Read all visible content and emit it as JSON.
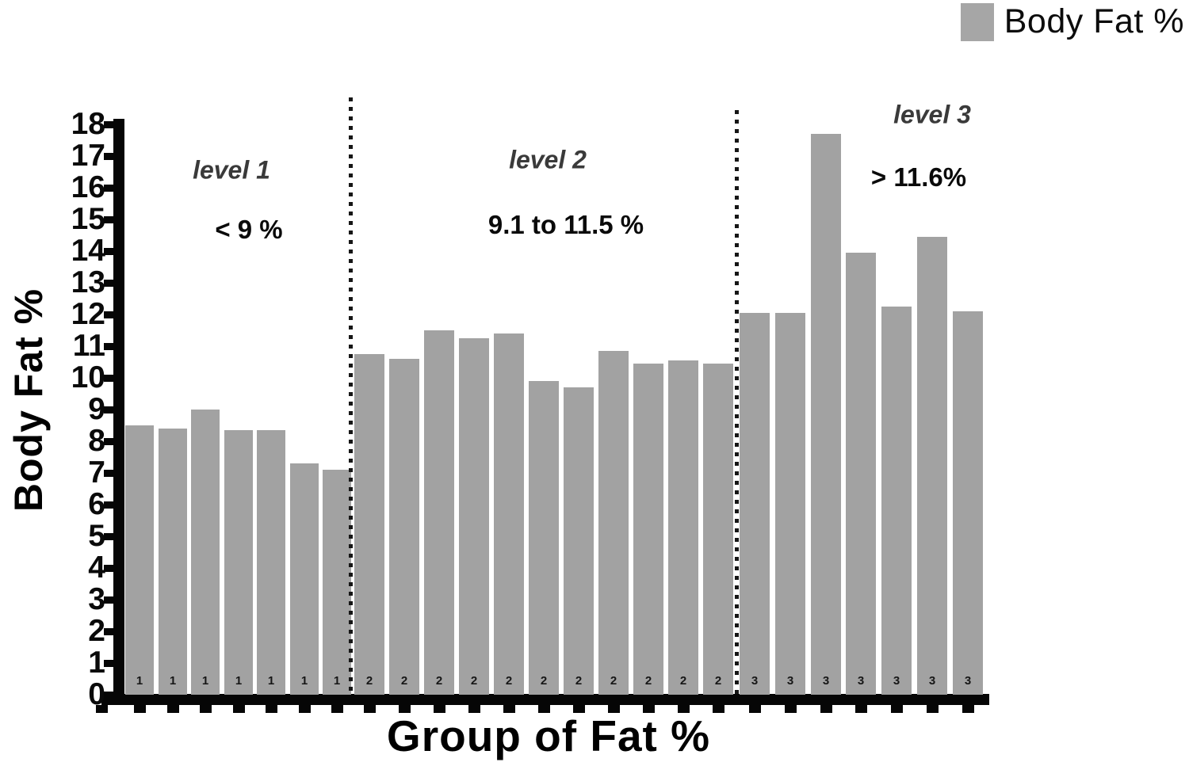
{
  "legend": {
    "label": "Body Fat %",
    "swatch_color": "#a6a6a6"
  },
  "annotations": {
    "level1": "level 1",
    "range1": "< 9 %",
    "level2": "level 2",
    "range2": "9.1 to 11.5 %",
    "level3": "level 3",
    "range3": "> 11.6%"
  },
  "chart_data": {
    "type": "bar",
    "title": "",
    "xlabel": "Group of Fat %",
    "ylabel": "Body Fat %",
    "ylim": [
      0,
      18
    ],
    "y_tick_step": 1,
    "y_ticks": [
      0,
      1,
      2,
      3,
      4,
      5,
      6,
      7,
      8,
      9,
      10,
      11,
      12,
      13,
      14,
      15,
      16,
      17,
      18
    ],
    "bar_color": "#a2a2a2",
    "legend_entries": [
      "Body Fat %"
    ],
    "legend_position": "top-right",
    "grid": false,
    "groups": [
      {
        "level_label": "level 1",
        "range_label": "< 9 %",
        "x_label": "1",
        "values": [
          8.5,
          8.4,
          9.0,
          8.35,
          8.35,
          7.3,
          7.1
        ]
      },
      {
        "level_label": "level 2",
        "range_label": "9.1 to 11.5 %",
        "x_label": "2",
        "values": [
          10.75,
          10.6,
          11.5,
          11.25,
          11.4,
          9.9,
          9.7,
          10.85,
          10.45,
          10.55,
          10.45
        ]
      },
      {
        "level_label": "level 3",
        "range_label": "> 11.6%",
        "x_label": "3",
        "values": [
          12.05,
          12.05,
          17.7,
          13.95,
          12.25,
          14.45,
          12.1
        ]
      }
    ]
  }
}
